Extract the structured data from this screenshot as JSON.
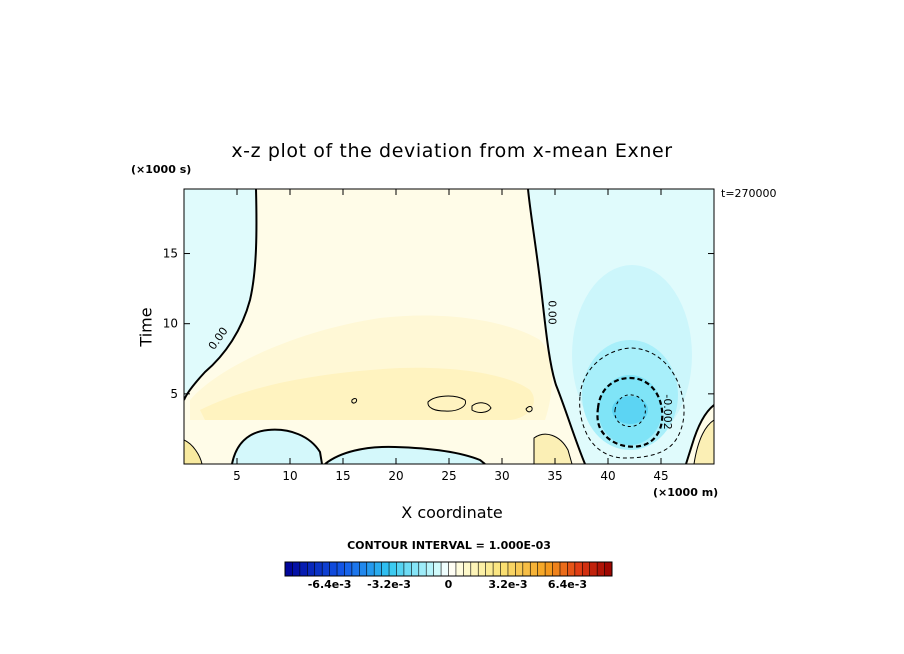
{
  "chart_data": {
    "type": "heatmap",
    "title": "x-z plot of the deviation from x-mean Exner",
    "xlabel": "X coordinate",
    "ylabel": "Time",
    "x_unit": "(×1000 m)",
    "y_unit": "(×1000 s)",
    "time_label": "t=270000",
    "xlim": [
      0,
      50
    ],
    "ylim": [
      0,
      19.6
    ],
    "x_ticks": [
      5,
      10,
      15,
      20,
      25,
      30,
      35,
      40,
      45
    ],
    "y_ticks": [
      5,
      10,
      15
    ],
    "contour_interval_text": "CONTOUR INTERVAL = 1.000E-03",
    "contour_labels": [
      {
        "text": "0.00",
        "x": 3.5,
        "y": 8.8,
        "angle": -55
      },
      {
        "text": "0.00",
        "x": 34.4,
        "y": 10.8,
        "angle": 90
      },
      {
        "text": "-0.002",
        "x": 45.3,
        "y": 3.7,
        "angle": 90
      }
    ],
    "colorbar": {
      "range": [
        -0.0088,
        0.0088
      ],
      "step": 0.0004,
      "tick_values": [
        -0.0064,
        -0.0032,
        0,
        0.0032,
        0.0064
      ],
      "tick_labels": [
        "-6.4e-3",
        "-3.2e-3",
        "0",
        "3.2e-3",
        "6.4e-3"
      ]
    },
    "colors": {
      "positive_light": "#fffce8",
      "positive_mid": "#fff6c2",
      "negative_light": "#e0fbfc",
      "negative_mid": "#c0f4fb",
      "negative_strong": "#70e0f7"
    }
  }
}
